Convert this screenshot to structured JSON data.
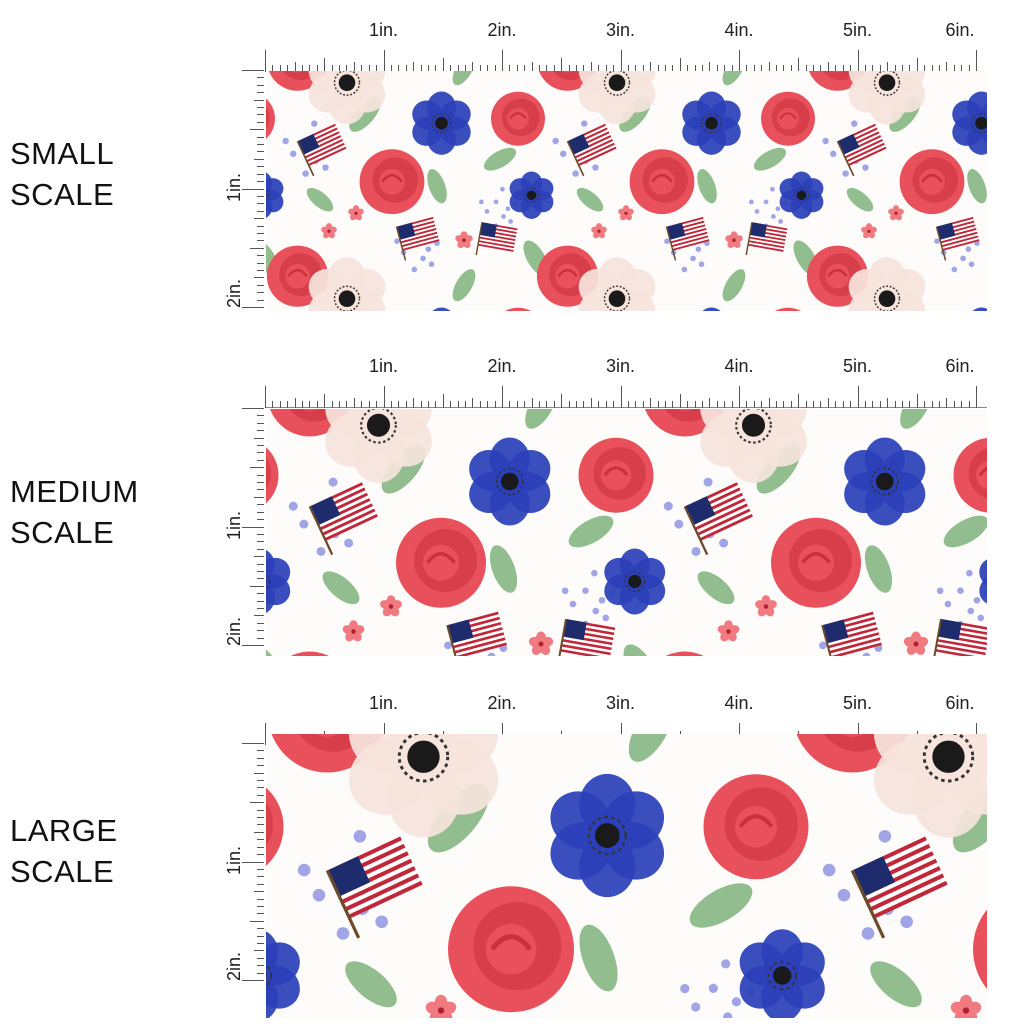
{
  "labels": {
    "small_line1": "SMALL",
    "small_line2": "SCALE",
    "medium_line1": "MEDIUM",
    "medium_line2": "SCALE",
    "large_line1": "LARGE",
    "large_line2": "SCALE"
  },
  "ruler": {
    "top_inches": [
      "1in.",
      "2in.",
      "3in.",
      "4in.",
      "5in.",
      "6in."
    ],
    "left_inches": [
      "1in.",
      "2in."
    ]
  },
  "pattern": {
    "colors": {
      "rose_red": "#e8505b",
      "rose_dark": "#c9303d",
      "anemone_blue": "#2a3fb8",
      "anemone_cream": "#f6e4dc",
      "leaf_green": "#7fb27a",
      "flag_red": "#c0283a",
      "flag_blue": "#1e2c6e",
      "filler_lilac": "#8a8ee0"
    },
    "motifs": [
      "rose",
      "white-anemone",
      "blue-anemone",
      "american-flag",
      "leaf",
      "lilac-sprig"
    ]
  }
}
